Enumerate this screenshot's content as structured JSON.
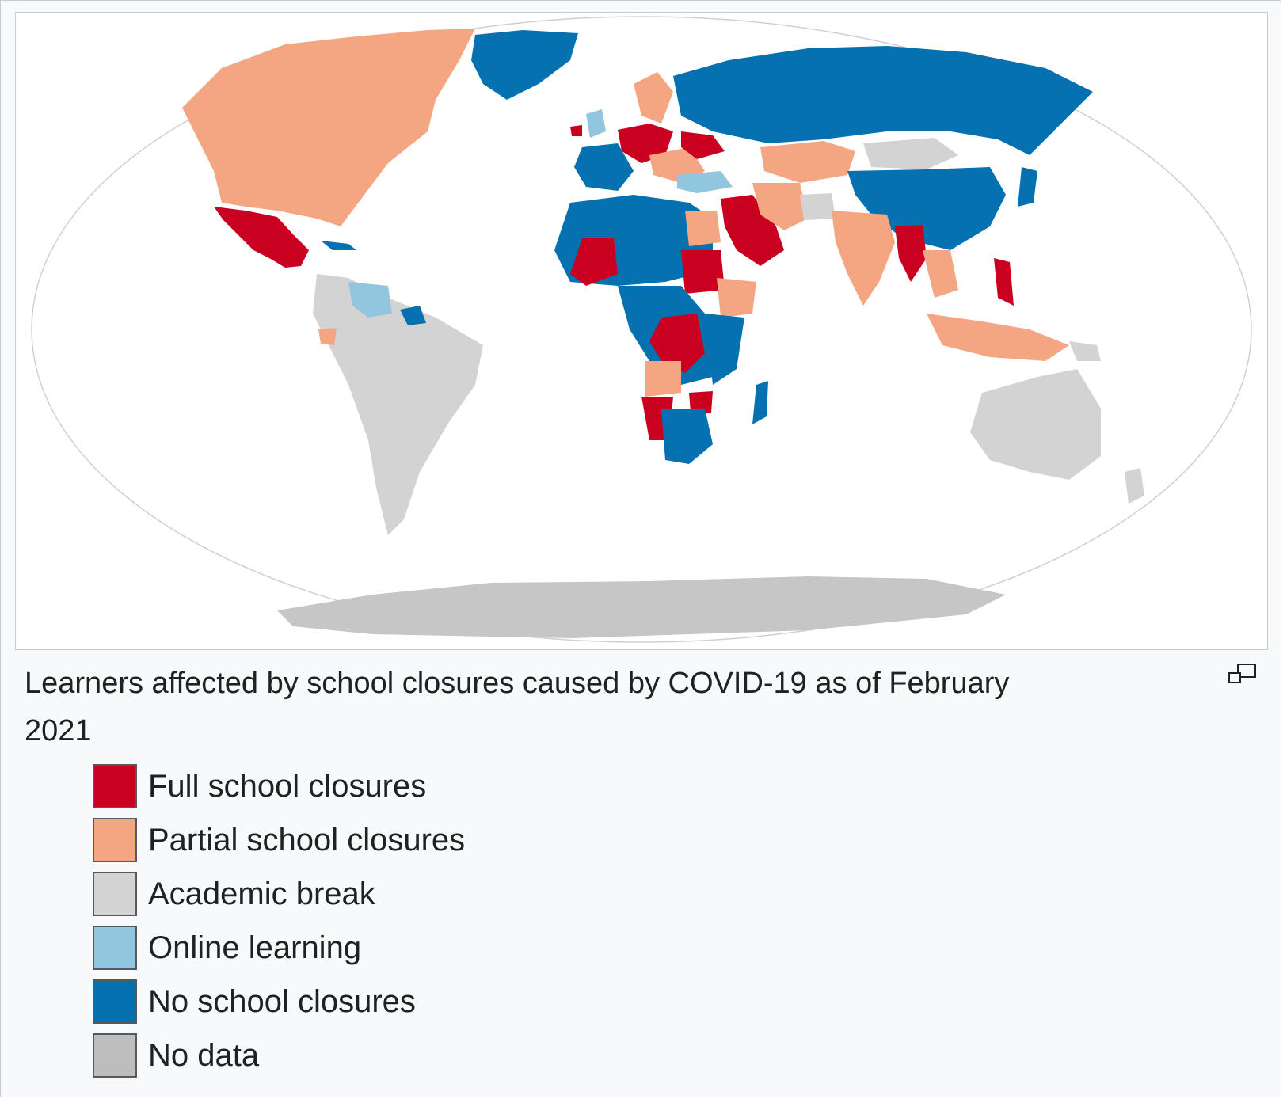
{
  "caption": {
    "title": "Learners affected by school closures caused by COVID-19 as of February 2021"
  },
  "legend": [
    {
      "label": "Full school closures",
      "color": "#ca0020"
    },
    {
      "label": "Partial school closures",
      "color": "#f4a582"
    },
    {
      "label": "Academic break",
      "color": "#d3d3d3"
    },
    {
      "label": "Online learning",
      "color": "#92c5de"
    },
    {
      "label": "No school closures",
      "color": "#0571b0"
    },
    {
      "label": "No data",
      "color": "#bdbdbd"
    }
  ],
  "icons": {
    "magnify": "magnify-icon"
  }
}
